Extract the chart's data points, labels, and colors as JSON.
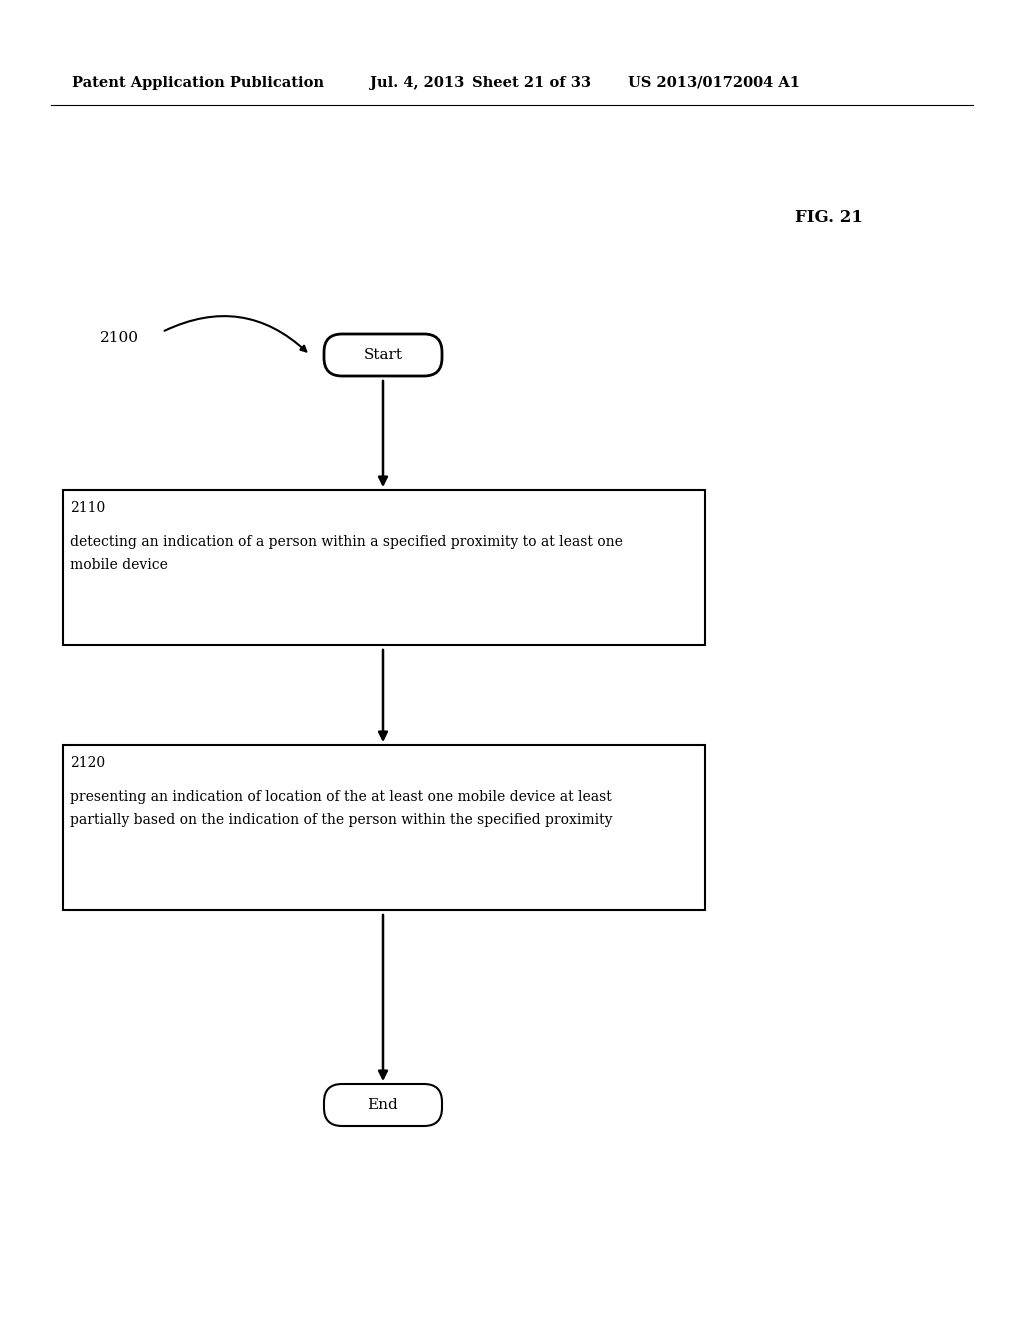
{
  "bg_color": "#ffffff",
  "header_text": "Patent Application Publication",
  "header_date": "Jul. 4, 2013",
  "header_sheet": "Sheet 21 of 33",
  "header_patent": "US 2013/0172004 A1",
  "fig_label": "FIG. 21",
  "diagram_label": "2100",
  "start_label": "Start",
  "end_label": "End",
  "box1_id": "2110",
  "box1_line1": "detecting an indication of a person within a specified proximity to at least one",
  "box1_line2": "mobile device",
  "box2_id": "2120",
  "box2_line1": "presenting an indication of location of the at least one mobile device at least",
  "box2_line2": "partially based on the indication of the person within the specified proximity"
}
